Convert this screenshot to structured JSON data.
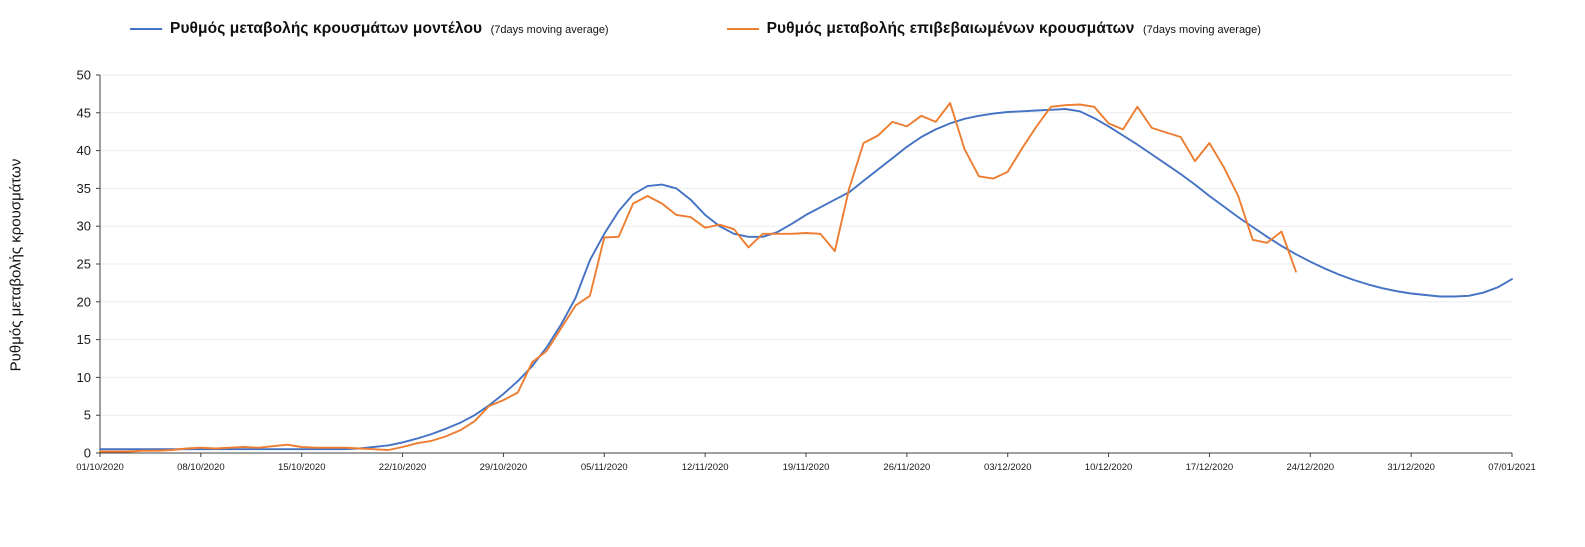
{
  "page": {
    "background": "#ffffff"
  },
  "chart_data": {
    "type": "line",
    "title": "",
    "xlabel": "",
    "ylabel": "Ρυθμός μεταβολής κρουσμάτων",
    "ylim": [
      0,
      50
    ],
    "y_ticks": [
      0,
      5,
      10,
      15,
      20,
      25,
      30,
      35,
      40,
      45,
      50
    ],
    "x_tick_labels": [
      "01/10/2020",
      "08/10/2020",
      "15/10/2020",
      "22/10/2020",
      "29/10/2020",
      "05/11/2020",
      "12/11/2020",
      "19/11/2020",
      "26/11/2020",
      "03/12/2020",
      "10/12/2020",
      "17/12/2020",
      "24/12/2020",
      "31/12/2020",
      "07/01/2021"
    ],
    "x_tick_step_days": 7,
    "x_total_days": 98,
    "grid": true,
    "legend_position": "top",
    "axis_color": "#404040",
    "grid_color": "#ebebeb",
    "text_color": "#1a1a1a",
    "series": [
      {
        "name": "Ρυθμός μεταβολής κρουσμάτων μοντέλου",
        "suffix": "(7days moving average)",
        "color": "#4472C4",
        "start_day": 0,
        "values": [
          0.5,
          0.5,
          0.5,
          0.5,
          0.5,
          0.5,
          0.5,
          0.5,
          0.5,
          0.5,
          0.5,
          0.5,
          0.5,
          0.5,
          0.5,
          0.5,
          0.5,
          0.5,
          0.6,
          0.8,
          1.0,
          1.4,
          1.9,
          2.5,
          3.2,
          4.0,
          5.0,
          6.3,
          7.8,
          9.5,
          11.5,
          14.0,
          17.0,
          20.5,
          25.5,
          29.0,
          32.0,
          34.2,
          35.3,
          35.5,
          35.0,
          33.5,
          31.5,
          30.0,
          29.0,
          28.6,
          28.6,
          29.2,
          30.3,
          31.5,
          32.5,
          33.5,
          34.5,
          36.0,
          37.5,
          39.0,
          40.5,
          41.8,
          42.8,
          43.6,
          44.2,
          44.6,
          44.9,
          45.1,
          45.2,
          45.3,
          45.4,
          45.5,
          45.2,
          44.3,
          43.2,
          42.0,
          40.8,
          39.5,
          38.2,
          36.9,
          35.5,
          34.0,
          32.6,
          31.2,
          29.9,
          28.6,
          27.4,
          26.3,
          25.3,
          24.4,
          23.6,
          22.9,
          22.3,
          21.8,
          21.4,
          21.1,
          20.9,
          20.7,
          20.7,
          20.8,
          21.2,
          21.9,
          23.0
        ]
      },
      {
        "name": "Ρυθμός μεταβολής επιβεβαιωμένων κρουσμάτων",
        "suffix": "(7days moving average)",
        "color": "#ED7D31",
        "start_day": 0,
        "values": [
          0.2,
          0.2,
          0.2,
          0.3,
          0.3,
          0.4,
          0.6,
          0.7,
          0.6,
          0.7,
          0.8,
          0.7,
          0.9,
          1.1,
          0.8,
          0.7,
          0.7,
          0.7,
          0.6,
          0.5,
          0.4,
          0.8,
          1.3,
          1.6,
          2.2,
          3.0,
          4.2,
          6.2,
          7.0,
          8.0,
          12.0,
          13.5,
          16.5,
          19.5,
          20.8,
          28.5,
          28.6,
          33.0,
          34.0,
          33.0,
          31.5,
          31.2,
          29.8,
          30.2,
          29.6,
          27.2,
          29.0,
          29.0,
          29.0,
          29.1,
          29.0,
          26.7,
          35.0,
          41.0,
          42.0,
          43.8,
          43.2,
          44.6,
          43.8,
          46.3,
          40.2,
          36.6,
          36.3,
          37.2,
          40.3,
          43.2,
          45.8,
          46.0,
          46.1,
          45.8,
          43.6,
          42.8,
          45.8,
          43.0,
          42.4,
          41.8,
          38.6,
          41.0,
          37.8,
          34.0,
          28.2,
          27.8,
          29.3,
          24.0
        ]
      }
    ]
  }
}
